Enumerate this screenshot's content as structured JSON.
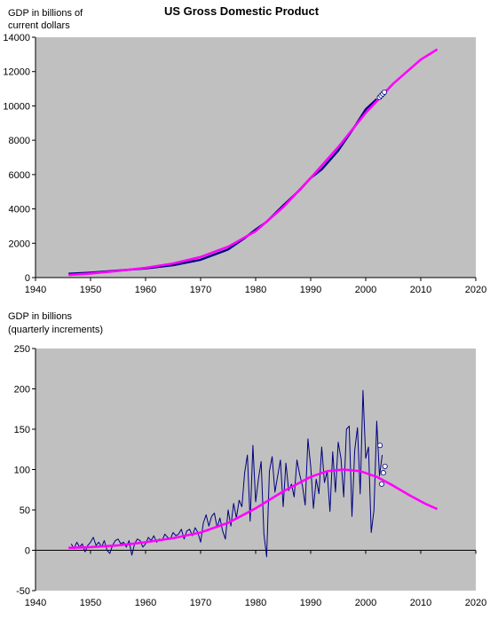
{
  "title": "US Gross Domestic Product",
  "chart_data": [
    {
      "type": "line",
      "ylabel": [
        "GDP in billions of",
        "current dollars"
      ],
      "xlim": [
        1940,
        2020
      ],
      "ylim": [
        0,
        14000
      ],
      "x_ticks": [
        "1940",
        "1950",
        "1960",
        "1970",
        "1980",
        "1990",
        "2000",
        "2010",
        "2020"
      ],
      "y_ticks": [
        "0",
        "2000",
        "4000",
        "6000",
        "8000",
        "10000",
        "12000",
        "14000"
      ],
      "grid": false,
      "plot_bg": "#c0c0c0",
      "series": [
        {
          "kind": "actual",
          "color": "#000080",
          "x": [
            1946,
            1950,
            1955,
            1960,
            1965,
            1970,
            1975,
            1978,
            1980,
            1982,
            1985,
            1988,
            1990,
            1992,
            1995,
            1998,
            2000,
            2002
          ],
          "y": [
            220,
            290,
            410,
            530,
            720,
            1040,
            1640,
            2300,
            2800,
            3250,
            4200,
            5100,
            5800,
            6300,
            7400,
            8800,
            9800,
            10400
          ]
        },
        {
          "kind": "fit",
          "color": "#ff00ff",
          "x": [
            1946,
            1950,
            1955,
            1960,
            1965,
            1970,
            1975,
            1980,
            1985,
            1990,
            1995,
            2000,
            2005,
            2010,
            2013
          ],
          "y": [
            150,
            240,
            390,
            570,
            820,
            1200,
            1800,
            2700,
            4100,
            5800,
            7600,
            9600,
            11300,
            12700,
            13300
          ]
        },
        {
          "kind": "markers",
          "color": "#ffffff",
          "x": [
            2002.5,
            2002.8,
            2003.1,
            2003.4
          ],
          "y": [
            10500,
            10600,
            10700,
            10800
          ]
        }
      ]
    },
    {
      "type": "line",
      "ylabel": [
        "GDP in billions",
        "(quarterly increments)"
      ],
      "xlim": [
        1940,
        2020
      ],
      "ylim": [
        -50,
        250
      ],
      "x_ticks": [
        "1940",
        "1950",
        "1960",
        "1970",
        "1980",
        "1990",
        "2000",
        "2010",
        "2020"
      ],
      "y_ticks": [
        "-50",
        "0",
        "50",
        "100",
        "150",
        "200",
        "250"
      ],
      "grid": false,
      "plot_bg": "#c0c0c0",
      "series": [
        {
          "kind": "actual",
          "color": "#000080",
          "x": [
            1946.5,
            1947,
            1947.5,
            1948,
            1948.5,
            1949,
            1949.5,
            1950,
            1950.5,
            1951,
            1951.5,
            1952,
            1952.5,
            1953,
            1953.5,
            1954,
            1954.5,
            1955,
            1955.5,
            1956,
            1956.5,
            1957,
            1957.5,
            1958,
            1958.5,
            1959,
            1959.5,
            1960,
            1960.5,
            1961,
            1961.5,
            1962,
            1962.5,
            1963,
            1963.5,
            1964,
            1964.5,
            1965,
            1965.5,
            1966,
            1966.5,
            1967,
            1967.5,
            1968,
            1968.5,
            1969,
            1969.5,
            1970,
            1970.5,
            1971,
            1971.5,
            1972,
            1972.5,
            1973,
            1973.5,
            1974,
            1974.5,
            1975,
            1975.5,
            1976,
            1976.5,
            1977,
            1977.5,
            1978,
            1978.5,
            1979,
            1979.5,
            1980,
            1980.5,
            1981,
            1981.5,
            1982,
            1982.5,
            1983,
            1983.5,
            1984,
            1984.5,
            1985,
            1985.5,
            1986,
            1986.5,
            1987,
            1987.5,
            1988,
            1988.5,
            1989,
            1989.5,
            1990,
            1990.5,
            1991,
            1991.5,
            1992,
            1992.5,
            1993,
            1993.5,
            1994,
            1994.5,
            1995,
            1995.5,
            1996,
            1996.5,
            1997,
            1997.5,
            1998,
            1998.5,
            1999,
            1999.5,
            2000,
            2000.5,
            2001,
            2001.5,
            2002,
            2002.5,
            2003
          ],
          "y": [
            8,
            2,
            10,
            4,
            8,
            -2,
            6,
            10,
            16,
            6,
            10,
            4,
            12,
            0,
            -4,
            6,
            12,
            14,
            8,
            10,
            4,
            12,
            -6,
            8,
            14,
            12,
            4,
            8,
            16,
            12,
            18,
            10,
            14,
            12,
            20,
            16,
            14,
            22,
            18,
            20,
            26,
            14,
            24,
            26,
            18,
            28,
            22,
            10,
            34,
            44,
            30,
            42,
            46,
            28,
            40,
            24,
            14,
            50,
            30,
            58,
            40,
            62,
            54,
            96,
            118,
            36,
            130,
            60,
            88,
            110,
            20,
            -8,
            98,
            116,
            72,
            92,
            112,
            54,
            108,
            74,
            82,
            66,
            112,
            94,
            80,
            56,
            138,
            104,
            52,
            88,
            70,
            128,
            84,
            98,
            48,
            122,
            72,
            134,
            114,
            66,
            150,
            154,
            42,
            124,
            152,
            70,
            198,
            114,
            128,
            22,
            50,
            160,
            92,
            118
          ],
          "width": 1
        },
        {
          "kind": "fit",
          "color": "#ff00ff",
          "x": [
            1946,
            1950,
            1955,
            1960,
            1965,
            1970,
            1975,
            1980,
            1985,
            1990,
            1993,
            1996,
            1999,
            2002,
            2005,
            2008,
            2011,
            2013
          ],
          "y": [
            3,
            4,
            6,
            10,
            15,
            22,
            34,
            52,
            73,
            91,
            98,
            100,
            98,
            91,
            80,
            68,
            57,
            51
          ]
        },
        {
          "kind": "markers",
          "color": "#ffffff",
          "x": [
            2002.6,
            2002.9,
            2003.2,
            2003.5
          ],
          "y": [
            130,
            82,
            96,
            104
          ]
        }
      ]
    }
  ]
}
